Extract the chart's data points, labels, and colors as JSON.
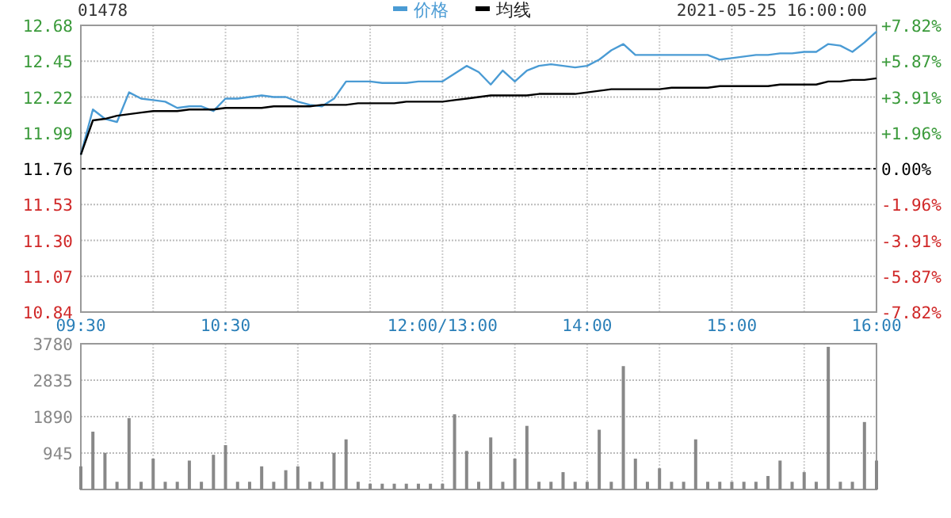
{
  "chart_data": [
    {
      "type": "line",
      "title": "01478",
      "subtitle": "2021-05-25 16:00:00",
      "legend": "top",
      "grid": true,
      "categories": [
        "09:30",
        null,
        null,
        null,
        null,
        null,
        null,
        null,
        null,
        null,
        null,
        null,
        "10:30",
        null,
        null,
        null,
        null,
        null,
        null,
        null,
        null,
        null,
        null,
        null,
        null,
        null,
        null,
        null,
        null,
        null,
        "12:00/13:00",
        null,
        null,
        null,
        null,
        null,
        null,
        null,
        null,
        null,
        null,
        null,
        "14:00",
        null,
        null,
        null,
        null,
        null,
        null,
        null,
        null,
        null,
        null,
        null,
        "15:00",
        null,
        null,
        null,
        null,
        null,
        null,
        null,
        null,
        null,
        null,
        null,
        "16:00"
      ],
      "ylim": [
        10.84,
        12.68
      ],
      "yticks": [
        10.84,
        11.07,
        {
          "value": 11.3,
          "label": "11.30"
        },
        11.53,
        11.76,
        11.99,
        12.22,
        12.45,
        12.68
      ],
      "y2lim": [
        -7.82,
        7.82
      ],
      "y2ticks": [
        {
          "value": -7.82,
          "label": "-7.82%"
        },
        {
          "value": -5.87,
          "label": "-5.87%"
        },
        {
          "value": -3.91,
          "label": "-3.91%"
        },
        {
          "value": -1.96,
          "label": "-1.96%"
        },
        {
          "value": 0,
          "label": "0.00%"
        },
        {
          "value": 1.96,
          "label": "+1.96%"
        },
        {
          "value": 3.91,
          "label": "+3.91%"
        },
        {
          "value": 5.87,
          "label": "+5.87%"
        },
        {
          "value": 7.82,
          "label": "+7.82%"
        }
      ],
      "ref_lines": [
        {
          "axis": "y",
          "value": 11.76,
          "color": "#000000",
          "line_style": "dashed"
        }
      ],
      "series": [
        {
          "name": "价格",
          "color": "#4a9bd4",
          "values": [
            11.85,
            12.14,
            12.08,
            12.06,
            12.25,
            12.21,
            12.2,
            12.19,
            12.15,
            12.16,
            12.16,
            12.13,
            12.21,
            12.21,
            12.22,
            12.23,
            12.22,
            12.22,
            12.19,
            12.17,
            12.16,
            12.21,
            12.32,
            12.32,
            12.32,
            12.31,
            12.31,
            12.31,
            12.32,
            12.32,
            12.32,
            12.37,
            12.42,
            12.38,
            12.3,
            12.39,
            12.32,
            12.39,
            12.42,
            12.43,
            12.42,
            12.41,
            12.42,
            12.46,
            12.52,
            12.56,
            12.49,
            12.49,
            12.49,
            12.49,
            12.49,
            12.49,
            12.49,
            12.46,
            12.47,
            12.48,
            12.49,
            12.49,
            12.5,
            12.5,
            12.51,
            12.51,
            12.56,
            12.55,
            12.51,
            12.57,
            12.64
          ]
        },
        {
          "name": "均线",
          "color": "#000000",
          "values": [
            11.85,
            12.07,
            12.08,
            12.1,
            12.11,
            12.12,
            12.13,
            12.13,
            12.13,
            12.14,
            12.14,
            12.14,
            12.15,
            12.15,
            12.15,
            12.15,
            12.16,
            12.16,
            12.16,
            12.16,
            12.17,
            12.17,
            12.17,
            12.18,
            12.18,
            12.18,
            12.18,
            12.19,
            12.19,
            12.19,
            12.19,
            12.2,
            12.21,
            12.22,
            12.23,
            12.23,
            12.23,
            12.23,
            12.24,
            12.24,
            12.24,
            12.24,
            12.25,
            12.26,
            12.27,
            12.27,
            12.27,
            12.27,
            12.27,
            12.28,
            12.28,
            12.28,
            12.28,
            12.29,
            12.29,
            12.29,
            12.29,
            12.29,
            12.3,
            12.3,
            12.3,
            12.3,
            12.32,
            12.32,
            12.33,
            12.33,
            12.34
          ]
        }
      ]
    },
    {
      "type": "bar",
      "grid": true,
      "tick_labels": "y",
      "color": "#888888",
      "categories": [
        null,
        null,
        null,
        null,
        null,
        null,
        null,
        null,
        null,
        null,
        null,
        null,
        null,
        null,
        null,
        null,
        null,
        null,
        null,
        null,
        null,
        null,
        null,
        null,
        null,
        null,
        null,
        null,
        null,
        null,
        null,
        null,
        null,
        null,
        null,
        null,
        null,
        null,
        null,
        null,
        null,
        null,
        null,
        null,
        null,
        null,
        null,
        null,
        null,
        null,
        null,
        null,
        null,
        null,
        null,
        null,
        null,
        null,
        null,
        null,
        null,
        null,
        null,
        null,
        null,
        null,
        null
      ],
      "ylim": [
        0,
        3780
      ],
      "yticks": [
        945,
        1890,
        2835,
        3780
      ],
      "values": [
        600,
        1500,
        950,
        200,
        1850,
        200,
        800,
        200,
        200,
        750,
        200,
        900,
        1150,
        200,
        200,
        600,
        200,
        500,
        600,
        200,
        200,
        950,
        1300,
        200,
        150,
        150,
        150,
        150,
        150,
        150,
        150,
        1950,
        1000,
        200,
        1350,
        200,
        800,
        1650,
        200,
        200,
        450,
        200,
        200,
        1550,
        200,
        3200,
        800,
        200,
        550,
        200,
        200,
        1300,
        200,
        200,
        200,
        200,
        200,
        350,
        750,
        200,
        450,
        200,
        3700,
        200,
        200,
        1750,
        750
      ]
    }
  ]
}
